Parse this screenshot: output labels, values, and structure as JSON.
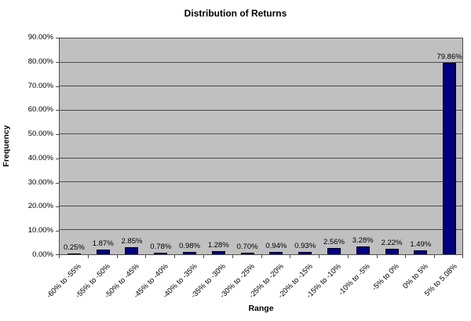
{
  "title": "Distribution of Returns",
  "y_axis_title": "Frequency",
  "x_axis_title": "Range",
  "chart_data": {
    "type": "bar",
    "title": "Distribution of Returns",
    "xlabel": "Range",
    "ylabel": "Frequency",
    "categories": [
      "-60% to -55%",
      "-55% to -50%",
      "-50% to -45%",
      "-45% to -40%",
      "-40% to -35%",
      "-35% to -30%",
      "-30% to -25%",
      "-25% to -20%",
      "-20% to -15%",
      "-15% to -10%",
      "-10% to -5%",
      "-5% to 0%",
      "0% to 5%",
      "5% to 5.08%"
    ],
    "values": [
      0.25,
      1.87,
      2.85,
      0.78,
      0.98,
      1.28,
      0.7,
      0.94,
      0.93,
      2.56,
      3.28,
      2.22,
      1.49,
      79.86
    ],
    "data_labels": [
      "0.25%",
      "1.87%",
      "2.85%",
      "0.78%",
      "0.98%",
      "1.28%",
      "0.70%",
      "0.94%",
      "0.93%",
      "2.56%",
      "3.28%",
      "2.22%",
      "1.49%",
      "79.86%"
    ],
    "ylim": [
      0,
      90
    ],
    "ytick_step": 10,
    "ytick_labels": [
      "0.00%",
      "10.00%",
      "20.00%",
      "30.00%",
      "40.00%",
      "50.00%",
      "60.00%",
      "70.00%",
      "80.00%",
      "90.00%"
    ],
    "grid": true,
    "legend_position": "none",
    "colors": {
      "bar_fill": "#000080",
      "bar_border": "#000000",
      "plot_background": "#c0c0c0",
      "gridline": "#4d4d4d",
      "axis_line": "#4d4d4d",
      "text": "#000000",
      "chart_background": "#ffffff"
    }
  }
}
